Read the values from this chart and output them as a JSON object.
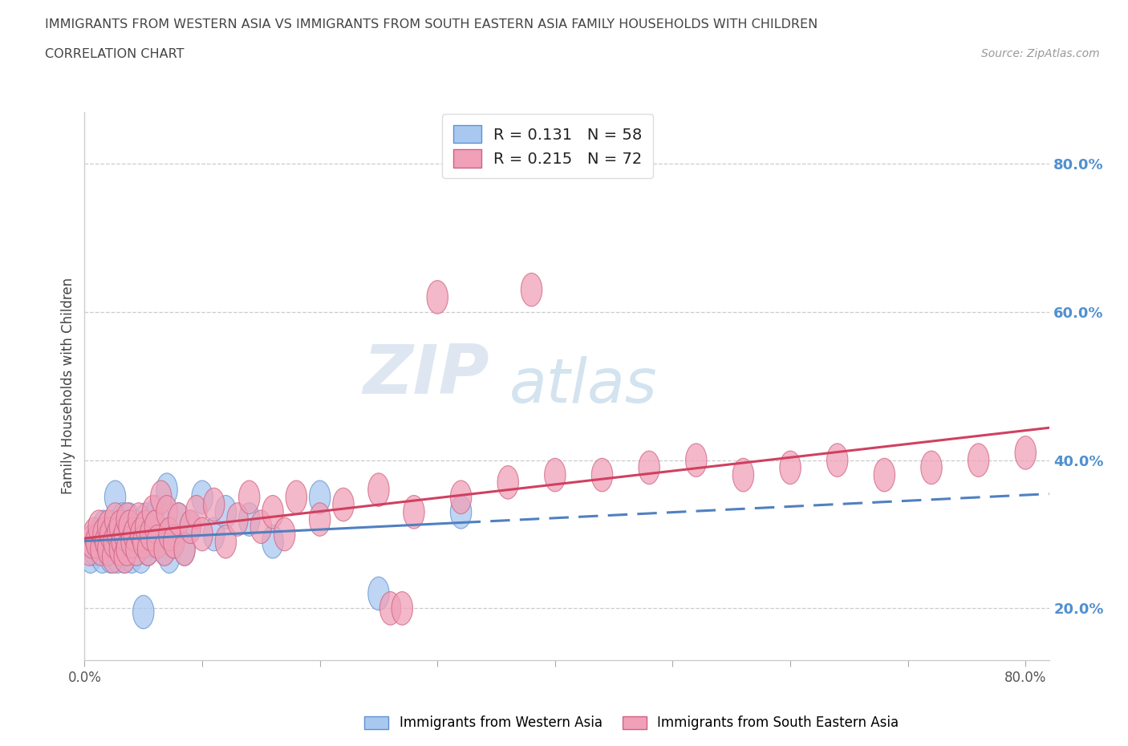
{
  "title_line1": "IMMIGRANTS FROM WESTERN ASIA VS IMMIGRANTS FROM SOUTH EASTERN ASIA FAMILY HOUSEHOLDS WITH CHILDREN",
  "title_line2": "CORRELATION CHART",
  "source_text": "Source: ZipAtlas.com",
  "ylabel": "Family Households with Children",
  "legend_bottom_label1": "Immigrants from Western Asia",
  "legend_bottom_label2": "Immigrants from South Eastern Asia",
  "R1": 0.131,
  "N1": 58,
  "R2": 0.215,
  "N2": 72,
  "color_blue": "#A8C8F0",
  "color_pink": "#F0A0B8",
  "edge_blue": "#6090D0",
  "edge_pink": "#D06080",
  "line_blue": "#5080C0",
  "line_pink": "#D04060",
  "xlim": [
    0.0,
    0.82
  ],
  "ylim": [
    0.13,
    0.87
  ],
  "x_ticks": [
    0.0,
    0.1,
    0.2,
    0.3,
    0.4,
    0.5,
    0.6,
    0.7,
    0.8
  ],
  "y_ticks": [
    0.2,
    0.4,
    0.6,
    0.8
  ],
  "y_tick_labels_right": [
    "20.0%",
    "40.0%",
    "60.0%",
    "80.0%"
  ],
  "background_color": "#FFFFFF",
  "watermark_top": "ZIP",
  "watermark_bot": "atlas",
  "scatter_blue": {
    "x": [
      0.005,
      0.008,
      0.01,
      0.012,
      0.013,
      0.015,
      0.016,
      0.018,
      0.02,
      0.02,
      0.022,
      0.022,
      0.024,
      0.025,
      0.025,
      0.026,
      0.028,
      0.028,
      0.03,
      0.03,
      0.032,
      0.032,
      0.034,
      0.034,
      0.035,
      0.036,
      0.038,
      0.038,
      0.04,
      0.04,
      0.042,
      0.044,
      0.045,
      0.046,
      0.048,
      0.05,
      0.05,
      0.052,
      0.054,
      0.056,
      0.06,
      0.062,
      0.065,
      0.068,
      0.07,
      0.072,
      0.075,
      0.08,
      0.085,
      0.09,
      0.1,
      0.11,
      0.12,
      0.14,
      0.16,
      0.2,
      0.25,
      0.32
    ],
    "y": [
      0.27,
      0.28,
      0.29,
      0.3,
      0.28,
      0.27,
      0.31,
      0.29,
      0.3,
      0.28,
      0.27,
      0.29,
      0.31,
      0.3,
      0.28,
      0.35,
      0.29,
      0.27,
      0.3,
      0.28,
      0.32,
      0.29,
      0.27,
      0.3,
      0.31,
      0.28,
      0.29,
      0.32,
      0.3,
      0.27,
      0.29,
      0.31,
      0.28,
      0.3,
      0.27,
      0.3,
      0.29,
      0.32,
      0.28,
      0.31,
      0.29,
      0.33,
      0.3,
      0.28,
      0.36,
      0.27,
      0.29,
      0.32,
      0.28,
      0.31,
      0.35,
      0.3,
      0.33,
      0.32,
      0.29,
      0.35,
      0.22,
      0.33
    ]
  },
  "scatter_pink": {
    "x": [
      0.004,
      0.006,
      0.008,
      0.01,
      0.012,
      0.014,
      0.016,
      0.018,
      0.02,
      0.02,
      0.022,
      0.024,
      0.025,
      0.026,
      0.028,
      0.03,
      0.03,
      0.032,
      0.034,
      0.034,
      0.036,
      0.036,
      0.038,
      0.04,
      0.042,
      0.044,
      0.046,
      0.048,
      0.05,
      0.052,
      0.054,
      0.056,
      0.058,
      0.06,
      0.062,
      0.065,
      0.068,
      0.07,
      0.072,
      0.076,
      0.08,
      0.085,
      0.09,
      0.095,
      0.1,
      0.11,
      0.12,
      0.13,
      0.14,
      0.15,
      0.16,
      0.17,
      0.18,
      0.2,
      0.22,
      0.25,
      0.28,
      0.32,
      0.36,
      0.4,
      0.44,
      0.48,
      0.52,
      0.56,
      0.6,
      0.64,
      0.68,
      0.72,
      0.76,
      0.8,
      0.3,
      0.38
    ],
    "y": [
      0.28,
      0.29,
      0.3,
      0.29,
      0.31,
      0.28,
      0.3,
      0.29,
      0.31,
      0.28,
      0.3,
      0.27,
      0.29,
      0.32,
      0.3,
      0.28,
      0.31,
      0.29,
      0.27,
      0.3,
      0.32,
      0.28,
      0.31,
      0.29,
      0.3,
      0.28,
      0.32,
      0.3,
      0.29,
      0.31,
      0.28,
      0.3,
      0.33,
      0.31,
      0.29,
      0.35,
      0.28,
      0.33,
      0.3,
      0.29,
      0.32,
      0.28,
      0.31,
      0.33,
      0.3,
      0.34,
      0.29,
      0.32,
      0.35,
      0.31,
      0.33,
      0.3,
      0.35,
      0.32,
      0.34,
      0.36,
      0.33,
      0.35,
      0.37,
      0.38,
      0.38,
      0.39,
      0.4,
      0.38,
      0.39,
      0.4,
      0.38,
      0.39,
      0.4,
      0.41,
      0.62,
      0.63
    ]
  },
  "scatter_pink_outliers": {
    "x": [
      0.26,
      0.27
    ],
    "y": [
      0.2,
      0.2
    ]
  },
  "scatter_blue_outlier": {
    "x": [
      0.05
    ],
    "y": [
      0.195
    ]
  }
}
